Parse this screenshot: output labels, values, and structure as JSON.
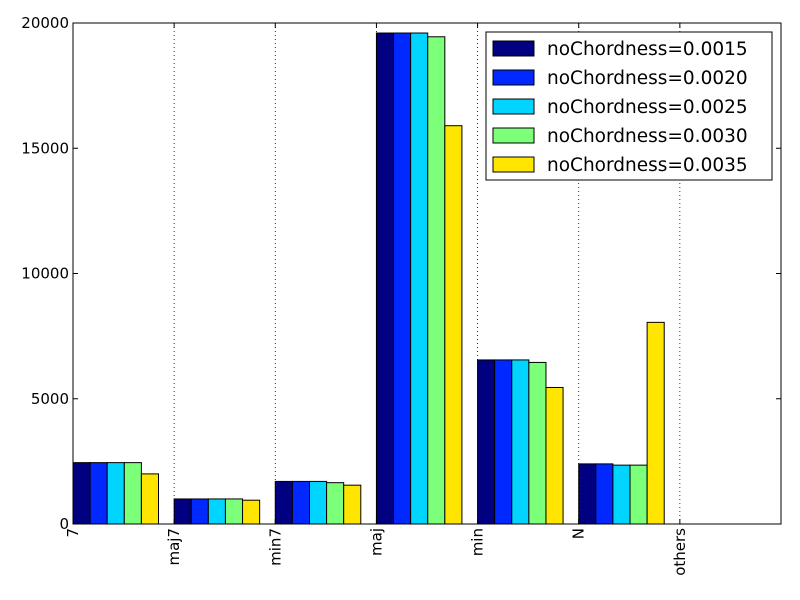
{
  "chart_data": {
    "type": "bar",
    "title": "",
    "xlabel": "",
    "ylabel": "",
    "categories": [
      "7",
      "maj7",
      "min7",
      "maj",
      "min",
      "N",
      "others"
    ],
    "ylim": [
      0,
      20000
    ],
    "yticks": [
      0,
      5000,
      10000,
      15000,
      20000
    ],
    "grid": "vertical dotted at category boundaries",
    "legend": "top-right",
    "series": [
      {
        "name": "noChordness=0.0015",
        "color": "#000080",
        "values": [
          2450,
          1000,
          1700,
          19600,
          6550,
          2400,
          0
        ]
      },
      {
        "name": "noChordness=0.0020",
        "color": "#0028ff",
        "values": [
          2450,
          1000,
          1700,
          19600,
          6550,
          2400,
          0
        ]
      },
      {
        "name": "noChordness=0.0025",
        "color": "#00d4ff",
        "values": [
          2450,
          1000,
          1700,
          19600,
          6550,
          2350,
          0
        ]
      },
      {
        "name": "noChordness=0.0030",
        "color": "#7cff79",
        "values": [
          2450,
          1000,
          1650,
          19450,
          6450,
          2350,
          0
        ]
      },
      {
        "name": "noChordness=0.0035",
        "color": "#ffe500",
        "values": [
          2000,
          950,
          1550,
          15900,
          5450,
          8050,
          0
        ]
      }
    ]
  }
}
